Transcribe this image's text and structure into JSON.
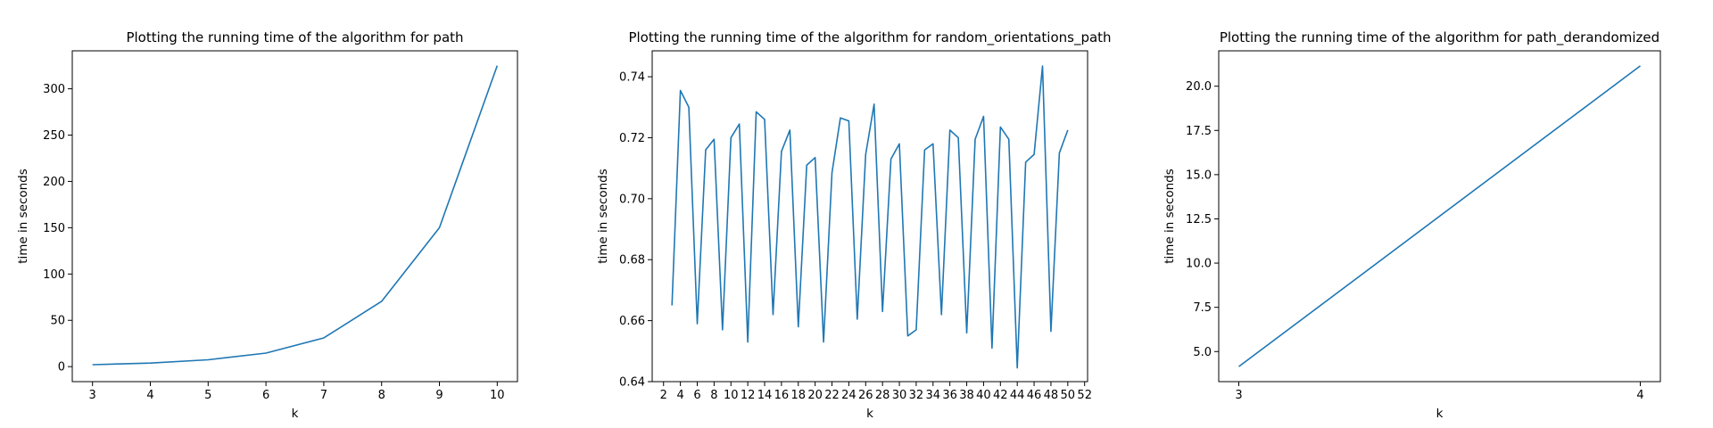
{
  "chart_data": [
    {
      "type": "line",
      "title": "Plotting the running time of the algorithm for path",
      "xlabel": "k",
      "ylabel": "time in seconds",
      "xlim": [
        2.65,
        10.35
      ],
      "ylim": [
        -16.2,
        341.0
      ],
      "xticks": [
        3,
        4,
        5,
        6,
        7,
        8,
        9,
        10
      ],
      "yticks": [
        0,
        50,
        100,
        150,
        200,
        250,
        300
      ],
      "ytick_labels": [
        "0",
        "50",
        "100",
        "150",
        "200",
        "250",
        "300"
      ],
      "color": "#1f77b4",
      "grid": false,
      "series": [
        {
          "x": [
            3,
            4,
            5,
            6,
            7,
            8,
            9,
            10
          ],
          "y": [
            2.1,
            3.8,
            7.4,
            14.6,
            31.0,
            70.5,
            150.0,
            325.0
          ]
        }
      ]
    },
    {
      "type": "line",
      "title": "Plotting the running time of the algorithm for random_orientations_path",
      "xlabel": "k",
      "ylabel": "time in seconds",
      "xlim": [
        0.65,
        52.35
      ],
      "ylim": [
        0.64,
        0.7485
      ],
      "xticks": [
        2,
        4,
        6,
        8,
        10,
        12,
        14,
        16,
        18,
        20,
        22,
        24,
        26,
        28,
        30,
        32,
        34,
        36,
        38,
        40,
        42,
        44,
        46,
        48,
        50,
        52
      ],
      "yticks": [
        0.64,
        0.66,
        0.68,
        0.7,
        0.72,
        0.74
      ],
      "ytick_labels": [
        "0.64",
        "0.66",
        "0.68",
        "0.70",
        "0.72",
        "0.74"
      ],
      "color": "#1f77b4",
      "grid": false,
      "series": [
        {
          "x": [
            3,
            4,
            5,
            6,
            7,
            8,
            9,
            10,
            11,
            12,
            13,
            14,
            15,
            16,
            17,
            18,
            19,
            20,
            21,
            22,
            23,
            24,
            25,
            26,
            27,
            28,
            29,
            30,
            31,
            32,
            33,
            34,
            35,
            36,
            37,
            38,
            39,
            40,
            41,
            42,
            43,
            44,
            45,
            46,
            47,
            48,
            49,
            50
          ],
          "y": [
            0.665,
            0.7355,
            0.73,
            0.659,
            0.716,
            0.7195,
            0.657,
            0.72,
            0.7245,
            0.653,
            0.7285,
            0.726,
            0.662,
            0.7155,
            0.7225,
            0.658,
            0.711,
            0.7135,
            0.653,
            0.7085,
            0.7265,
            0.7255,
            0.6605,
            0.7145,
            0.731,
            0.663,
            0.713,
            0.718,
            0.655,
            0.657,
            0.716,
            0.718,
            0.662,
            0.7225,
            0.72,
            0.656,
            0.7195,
            0.727,
            0.651,
            0.7235,
            0.7195,
            0.6445,
            0.712,
            0.7145,
            0.7435,
            0.6565,
            0.715,
            0.7225
          ]
        }
      ]
    },
    {
      "type": "line",
      "title": "Plotting the running time of the algorithm for path_derandomized",
      "xlabel": "k",
      "ylabel": "time in seconds",
      "xlim": [
        2.95,
        4.05
      ],
      "ylim": [
        3.3,
        22.0
      ],
      "xticks": [
        3,
        4
      ],
      "yticks": [
        5.0,
        7.5,
        10.0,
        12.5,
        15.0,
        17.5,
        20.0
      ],
      "ytick_labels": [
        "5.0",
        "7.5",
        "10.0",
        "12.5",
        "15.0",
        "17.5",
        "20.0"
      ],
      "color": "#1f77b4",
      "grid": false,
      "series": [
        {
          "x": [
            3,
            4
          ],
          "y": [
            4.15,
            21.15
          ]
        }
      ]
    }
  ]
}
